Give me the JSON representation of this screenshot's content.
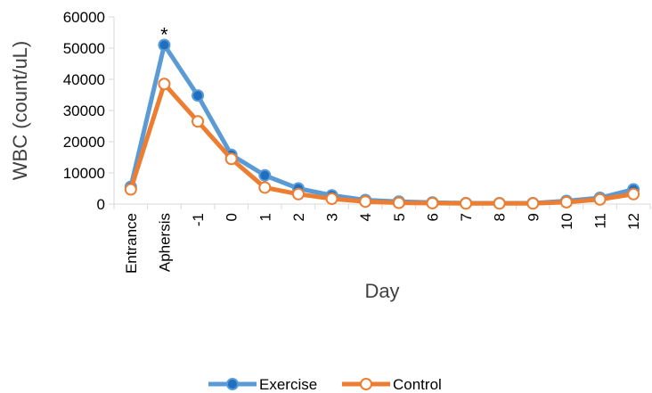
{
  "chart_data": {
    "type": "line",
    "categories": [
      "Entrance",
      "Aphersis",
      "-1",
      "0",
      "1",
      "2",
      "3",
      "4",
      "5",
      "6",
      "7",
      "8",
      "9",
      "10",
      "11",
      "12"
    ],
    "series": [
      {
        "name": "Exercise",
        "color": "#5B9BD5",
        "marker_fill": "#1F6FC0",
        "marker": "filled-circle",
        "values": [
          5500,
          51000,
          34800,
          15800,
          9200,
          5000,
          2800,
          1300,
          800,
          500,
          300,
          300,
          300,
          1000,
          2000,
          4700
        ]
      },
      {
        "name": "Control",
        "color": "#ED7D31",
        "marker_fill": "#FFFFFF",
        "marker": "open-circle",
        "values": [
          4700,
          38500,
          26500,
          14500,
          5300,
          3200,
          1700,
          800,
          400,
          300,
          200,
          200,
          200,
          600,
          1500,
          3200
        ]
      }
    ],
    "xlabel": "Day",
    "ylabel": "WBC (count/uL)",
    "ylim": [
      0,
      60000
    ],
    "yticks": [
      0,
      10000,
      20000,
      30000,
      40000,
      50000,
      60000
    ],
    "grid": false,
    "legend": "bottom",
    "annotations": [
      {
        "text": "*",
        "category": "Aphersis",
        "value": 51000
      }
    ]
  }
}
